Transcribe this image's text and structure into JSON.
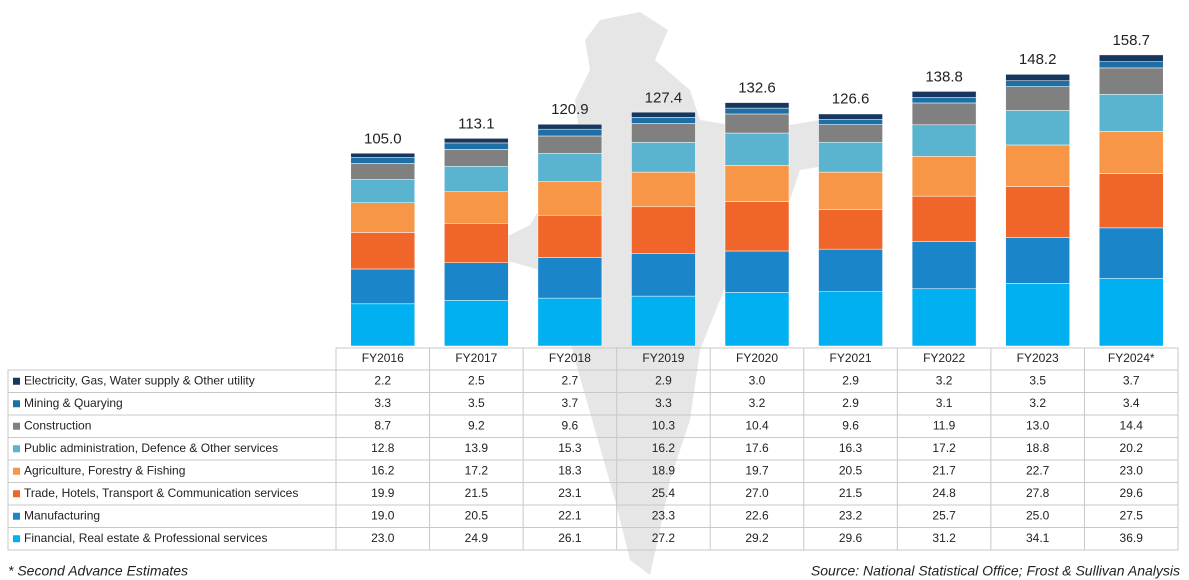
{
  "chart_data": {
    "type": "stacked-bar",
    "categories": [
      "FY2016",
      "FY2017",
      "FY2018",
      "FY2019",
      "FY2020",
      "FY2021",
      "FY2022",
      "FY2023",
      "FY2024*"
    ],
    "series": [
      {
        "name": "Electricity, Gas, Water supply & Other utility",
        "color": "#17375e",
        "values": [
          2.2,
          2.5,
          2.7,
          2.9,
          3.0,
          2.9,
          3.2,
          3.5,
          3.7
        ],
        "value_labels": [
          "2.2",
          "2.5",
          "2.7",
          "2.9",
          "3.0",
          "2.9",
          "3.2",
          "3.5",
          "3.7"
        ]
      },
      {
        "name": "Mining & Quarying",
        "color": "#1d6fa5",
        "values": [
          3.3,
          3.5,
          3.7,
          3.3,
          3.2,
          2.9,
          3.1,
          3.2,
          3.4
        ],
        "value_labels": [
          "3.3",
          "3.5",
          "3.7",
          "3.3",
          "3.2",
          "2.9",
          "3.1",
          "3.2",
          "3.4"
        ]
      },
      {
        "name": "Construction",
        "color": "#808080",
        "values": [
          8.7,
          9.2,
          9.6,
          10.3,
          10.4,
          9.6,
          11.9,
          13.0,
          14.4
        ],
        "value_labels": [
          "8.7",
          "9.2",
          "9.6",
          "10.3",
          "10.4",
          "9.6",
          "11.9",
          "13.0",
          "14.4"
        ]
      },
      {
        "name": "Public administration, Defence & Other services",
        "color": "#5ab4d0",
        "values": [
          12.8,
          13.9,
          15.3,
          16.2,
          17.6,
          16.3,
          17.2,
          18.8,
          20.2
        ],
        "value_labels": [
          "12.8",
          "13.9",
          "15.3",
          "16.2",
          "17.6",
          "16.3",
          "17.2",
          "18.8",
          "20.2"
        ]
      },
      {
        "name": "Agriculture, Forestry & Fishing",
        "color": "#f79646",
        "values": [
          16.2,
          17.2,
          18.3,
          18.9,
          19.7,
          20.5,
          21.7,
          22.7,
          23.0
        ],
        "value_labels": [
          "16.2",
          "17.2",
          "18.3",
          "18.9",
          "19.7",
          "20.5",
          "21.7",
          "22.7",
          "23.0"
        ]
      },
      {
        "name": "Trade, Hotels, Transport & Communication services",
        "color": "#f0662a",
        "values": [
          19.9,
          21.5,
          23.1,
          25.4,
          27.0,
          21.5,
          24.8,
          27.8,
          29.6
        ],
        "value_labels": [
          "19.9",
          "21.5",
          "23.1",
          "25.4",
          "27.0",
          "21.5",
          "24.8",
          "27.8",
          "29.6"
        ]
      },
      {
        "name": "Manufacturing",
        "color": "#1b85c9",
        "values": [
          19.0,
          20.5,
          22.1,
          23.3,
          22.6,
          23.2,
          25.7,
          25.0,
          27.5
        ],
        "value_labels": [
          "19.0",
          "20.5",
          "22.1",
          "23.3",
          "22.6",
          "23.2",
          "25.7",
          "25.0",
          "27.5"
        ]
      },
      {
        "name": "Financial, Real estate & Professional services",
        "color": "#00b0f0",
        "values": [
          23.0,
          24.9,
          26.1,
          27.2,
          29.2,
          29.6,
          31.2,
          34.1,
          36.9
        ],
        "value_labels": [
          "23.0",
          "24.9",
          "26.1",
          "27.2",
          "29.2",
          "29.6",
          "31.2",
          "34.1",
          "36.9"
        ]
      }
    ],
    "totals": [
      105.0,
      113.1,
      120.9,
      127.4,
      132.6,
      126.6,
      138.8,
      148.2,
      158.7
    ],
    "total_labels": [
      "105.0",
      "113.1",
      "120.9",
      "127.4",
      "132.6",
      "126.6",
      "138.8",
      "148.2",
      "158.7"
    ],
    "ylim": [
      0,
      175
    ],
    "footnote": "* Second Advance Estimates",
    "source": "Source: National Statistical Office; Frost & Sullivan Analysis"
  }
}
